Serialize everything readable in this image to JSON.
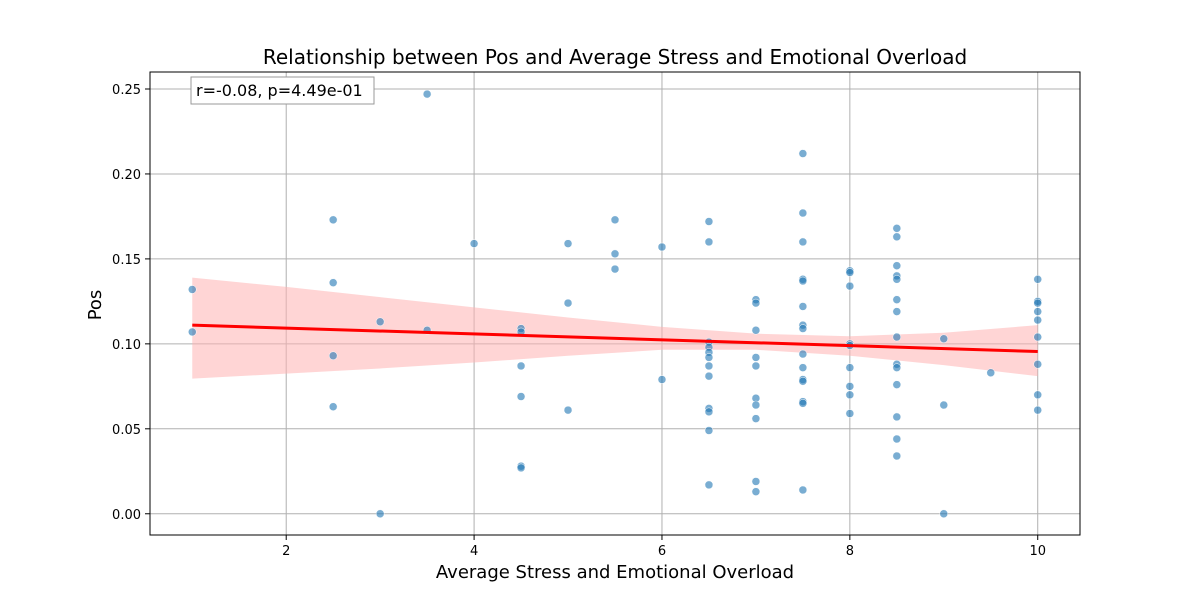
{
  "chart_data": {
    "type": "scatter",
    "title": "Relationship between Pos and Average Stress and Emotional Overload",
    "xlabel": "Average Stress and Emotional Overload",
    "ylabel": "Pos",
    "xlim": [
      0.55,
      10.45
    ],
    "ylim": [
      -0.0125,
      0.26
    ],
    "xticks": [
      2,
      4,
      6,
      8,
      10
    ],
    "yticks": [
      0.0,
      0.05,
      0.1,
      0.15,
      0.2,
      0.25
    ],
    "xtick_labels": [
      "2",
      "4",
      "6",
      "8",
      "10"
    ],
    "ytick_labels": [
      "0.00",
      "0.05",
      "0.10",
      "0.15",
      "0.20",
      "0.25"
    ],
    "grid": true,
    "annotation": "r=-0.08, p=4.49e-01",
    "point_color": "#1f77b4",
    "regression": {
      "x": [
        1.0,
        10.0
      ],
      "y": [
        0.111,
        0.0955
      ],
      "color": "#ff0000",
      "ci_color": "#ffb3b3",
      "ci": {
        "x": [
          1,
          2,
          3,
          4,
          5,
          6,
          7,
          8,
          9,
          10
        ],
        "lower": [
          0.0795,
          0.0825,
          0.0855,
          0.089,
          0.093,
          0.0965,
          0.0965,
          0.093,
          0.0875,
          0.081
        ],
        "upper": [
          0.139,
          0.1335,
          0.1275,
          0.1215,
          0.1155,
          0.11,
          0.106,
          0.1045,
          0.1065,
          0.111
        ]
      }
    },
    "points": [
      [
        1.0,
        0.132
      ],
      [
        1.0,
        0.107
      ],
      [
        2.5,
        0.173
      ],
      [
        2.5,
        0.136
      ],
      [
        2.5,
        0.093
      ],
      [
        2.5,
        0.063
      ],
      [
        3.0,
        0.113
      ],
      [
        3.0,
        0.0
      ],
      [
        3.5,
        0.247
      ],
      [
        3.5,
        0.108
      ],
      [
        4.0,
        0.159
      ],
      [
        4.5,
        0.109
      ],
      [
        4.5,
        0.107
      ],
      [
        4.5,
        0.087
      ],
      [
        4.5,
        0.069
      ],
      [
        4.5,
        0.028
      ],
      [
        4.5,
        0.027
      ],
      [
        5.0,
        0.159
      ],
      [
        5.0,
        0.124
      ],
      [
        5.0,
        0.061
      ],
      [
        5.5,
        0.173
      ],
      [
        5.5,
        0.153
      ],
      [
        5.5,
        0.144
      ],
      [
        6.0,
        0.157
      ],
      [
        6.0,
        0.079
      ],
      [
        6.5,
        0.172
      ],
      [
        6.5,
        0.16
      ],
      [
        6.5,
        0.101
      ],
      [
        6.5,
        0.098
      ],
      [
        6.5,
        0.095
      ],
      [
        6.5,
        0.092
      ],
      [
        6.5,
        0.087
      ],
      [
        6.5,
        0.081
      ],
      [
        6.5,
        0.062
      ],
      [
        6.5,
        0.06
      ],
      [
        6.5,
        0.049
      ],
      [
        6.5,
        0.017
      ],
      [
        7.0,
        0.126
      ],
      [
        7.0,
        0.124
      ],
      [
        7.0,
        0.108
      ],
      [
        7.0,
        0.092
      ],
      [
        7.0,
        0.087
      ],
      [
        7.0,
        0.068
      ],
      [
        7.0,
        0.064
      ],
      [
        7.0,
        0.056
      ],
      [
        7.0,
        0.019
      ],
      [
        7.0,
        0.013
      ],
      [
        7.5,
        0.212
      ],
      [
        7.5,
        0.177
      ],
      [
        7.5,
        0.16
      ],
      [
        7.5,
        0.138
      ],
      [
        7.5,
        0.137
      ],
      [
        7.5,
        0.122
      ],
      [
        7.5,
        0.111
      ],
      [
        7.5,
        0.109
      ],
      [
        7.5,
        0.094
      ],
      [
        7.5,
        0.086
      ],
      [
        7.5,
        0.079
      ],
      [
        7.5,
        0.078
      ],
      [
        7.5,
        0.066
      ],
      [
        7.5,
        0.065
      ],
      [
        7.5,
        0.014
      ],
      [
        8.0,
        0.143
      ],
      [
        8.0,
        0.142
      ],
      [
        8.0,
        0.134
      ],
      [
        8.0,
        0.1
      ],
      [
        8.0,
        0.099
      ],
      [
        8.0,
        0.086
      ],
      [
        8.0,
        0.075
      ],
      [
        8.0,
        0.07
      ],
      [
        8.0,
        0.059
      ],
      [
        8.5,
        0.168
      ],
      [
        8.5,
        0.163
      ],
      [
        8.5,
        0.146
      ],
      [
        8.5,
        0.14
      ],
      [
        8.5,
        0.138
      ],
      [
        8.5,
        0.126
      ],
      [
        8.5,
        0.119
      ],
      [
        8.5,
        0.104
      ],
      [
        8.5,
        0.088
      ],
      [
        8.5,
        0.086
      ],
      [
        8.5,
        0.076
      ],
      [
        8.5,
        0.057
      ],
      [
        8.5,
        0.044
      ],
      [
        8.5,
        0.034
      ],
      [
        9.0,
        0.103
      ],
      [
        9.0,
        0.064
      ],
      [
        9.0,
        0.0
      ],
      [
        9.5,
        0.083
      ],
      [
        10.0,
        0.138
      ],
      [
        10.0,
        0.125
      ],
      [
        10.0,
        0.124
      ],
      [
        10.0,
        0.119
      ],
      [
        10.0,
        0.114
      ],
      [
        10.0,
        0.104
      ],
      [
        10.0,
        0.088
      ],
      [
        10.0,
        0.07
      ],
      [
        10.0,
        0.061
      ]
    ]
  }
}
